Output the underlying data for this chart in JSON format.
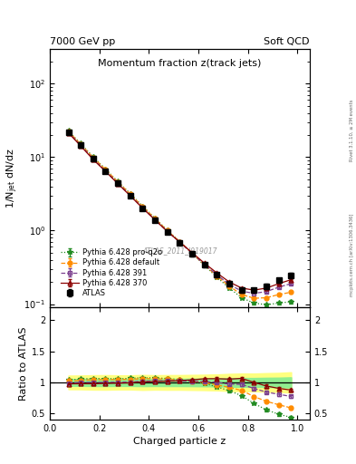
{
  "title": "Momentum fraction z(track jets)",
  "header_left": "7000 GeV pp",
  "header_right": "Soft QCD",
  "xlabel": "Charged particle z",
  "ylabel_main": "1/N$_{jet}$ dN/dz",
  "ylabel_ratio": "Ratio to ATLAS",
  "watermark": "ATLAS_2011_I919017",
  "right_label": "mcplots.cern.ch [arXiv:1306.3436]",
  "rivet_label": "Rivet 3.1.10, ≥ 2M events",
  "z_values": [
    0.075,
    0.125,
    0.175,
    0.225,
    0.275,
    0.325,
    0.375,
    0.425,
    0.475,
    0.525,
    0.575,
    0.625,
    0.675,
    0.725,
    0.775,
    0.825,
    0.875,
    0.925,
    0.975
  ],
  "atlas_y": [
    22.0,
    14.5,
    9.5,
    6.5,
    4.4,
    3.0,
    2.0,
    1.38,
    0.95,
    0.68,
    0.48,
    0.34,
    0.25,
    0.19,
    0.155,
    0.155,
    0.175,
    0.21,
    0.245
  ],
  "atlas_yerr": [
    1.2,
    0.8,
    0.55,
    0.38,
    0.25,
    0.17,
    0.12,
    0.08,
    0.056,
    0.04,
    0.029,
    0.021,
    0.016,
    0.013,
    0.011,
    0.011,
    0.013,
    0.016,
    0.02
  ],
  "py370_y": [
    21.5,
    14.2,
    9.3,
    6.4,
    4.35,
    2.98,
    2.02,
    1.4,
    0.97,
    0.7,
    0.5,
    0.36,
    0.265,
    0.2,
    0.165,
    0.155,
    0.165,
    0.19,
    0.215
  ],
  "py370_yerr": [
    0.3,
    0.2,
    0.15,
    0.1,
    0.07,
    0.05,
    0.035,
    0.025,
    0.018,
    0.013,
    0.009,
    0.007,
    0.005,
    0.004,
    0.003,
    0.003,
    0.004,
    0.005,
    0.006
  ],
  "py391_y": [
    21.8,
    14.5,
    9.5,
    6.5,
    4.42,
    3.02,
    2.04,
    1.41,
    0.975,
    0.695,
    0.49,
    0.345,
    0.25,
    0.185,
    0.15,
    0.14,
    0.148,
    0.17,
    0.19
  ],
  "py391_yerr": [
    0.3,
    0.2,
    0.15,
    0.1,
    0.07,
    0.05,
    0.035,
    0.025,
    0.018,
    0.013,
    0.009,
    0.007,
    0.005,
    0.004,
    0.003,
    0.003,
    0.004,
    0.005,
    0.006
  ],
  "pydef_y": [
    22.5,
    15.0,
    9.9,
    6.8,
    4.6,
    3.15,
    2.12,
    1.46,
    1.0,
    0.705,
    0.49,
    0.34,
    0.24,
    0.175,
    0.135,
    0.12,
    0.122,
    0.135,
    0.145
  ],
  "pydef_yerr": [
    0.3,
    0.2,
    0.15,
    0.1,
    0.07,
    0.05,
    0.035,
    0.025,
    0.018,
    0.013,
    0.009,
    0.007,
    0.005,
    0.004,
    0.003,
    0.003,
    0.004,
    0.005,
    0.006
  ],
  "pyproq2o_y": [
    22.8,
    15.3,
    10.1,
    6.9,
    4.65,
    3.2,
    2.15,
    1.48,
    1.01,
    0.71,
    0.49,
    0.335,
    0.232,
    0.165,
    0.122,
    0.103,
    0.098,
    0.103,
    0.108
  ],
  "pyproq2o_yerr": [
    0.3,
    0.2,
    0.15,
    0.1,
    0.07,
    0.05,
    0.035,
    0.025,
    0.018,
    0.013,
    0.009,
    0.007,
    0.005,
    0.004,
    0.003,
    0.003,
    0.004,
    0.005,
    0.006
  ],
  "color_atlas": "#000000",
  "color_py370": "#8B0000",
  "color_py391": "#7B3F8E",
  "color_pydef": "#FF8C00",
  "color_pyproq2o": "#228B22",
  "band_green": "#90EE90",
  "band_yellow": "#FFFF80",
  "xlim": [
    0.0,
    1.05
  ],
  "ylim_main_log": [
    -1.1,
    2.48
  ],
  "ylim_ratio": [
    0.4,
    2.2
  ],
  "ratio_yticks": [
    0.5,
    1.0,
    1.5,
    2.0
  ],
  "ratio_ytick_labels": [
    "0.5",
    "1",
    "1.5",
    "2"
  ]
}
